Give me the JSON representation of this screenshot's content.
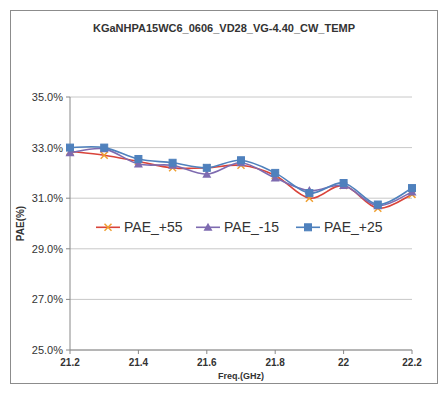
{
  "chart_data": {
    "type": "line",
    "title": "KGaNHPA15WC6_0606_VD28_VG-4.40_CW_TEMP",
    "x_label": "Freq.(GHz)",
    "y_label": "PAE(%)",
    "x": [
      21.2,
      21.3,
      21.4,
      21.5,
      21.6,
      21.7,
      21.8,
      21.9,
      22.0,
      22.1,
      22.2
    ],
    "series": [
      {
        "name": "PAE_+55",
        "color": "#d9443a",
        "marker": "x",
        "line_style": "smooth",
        "values": [
          32.85,
          32.7,
          32.45,
          32.2,
          32.2,
          32.3,
          31.9,
          31.0,
          31.5,
          30.6,
          31.15
        ]
      },
      {
        "name": "PAE_-15",
        "color": "#7e6bb0",
        "marker": "triangle",
        "line_style": "smooth",
        "values": [
          32.8,
          32.95,
          32.35,
          32.3,
          31.95,
          32.4,
          31.8,
          31.3,
          31.5,
          30.7,
          31.25
        ]
      },
      {
        "name": "PAE_+25",
        "color": "#4f81bd",
        "marker": "square",
        "line_style": "smooth",
        "values": [
          33.0,
          33.0,
          32.55,
          32.4,
          32.2,
          32.5,
          32.0,
          31.2,
          31.6,
          30.75,
          31.4
        ]
      }
    ],
    "xlim": [
      21.2,
      22.2
    ],
    "xticks": [
      21.2,
      21.4,
      21.6,
      21.8,
      22,
      22.2
    ],
    "ylim": [
      25,
      35
    ],
    "yticks": [
      {
        "value": 25,
        "label": "25.0%"
      },
      {
        "value": 27,
        "label": "27.0%"
      },
      {
        "value": 29,
        "label": "29.0%"
      },
      {
        "value": 31,
        "label": "31.0%"
      },
      {
        "value": 33,
        "label": "33.0%"
      },
      {
        "value": 35,
        "label": "35.0%"
      }
    ],
    "grid": true,
    "legend": "center"
  }
}
